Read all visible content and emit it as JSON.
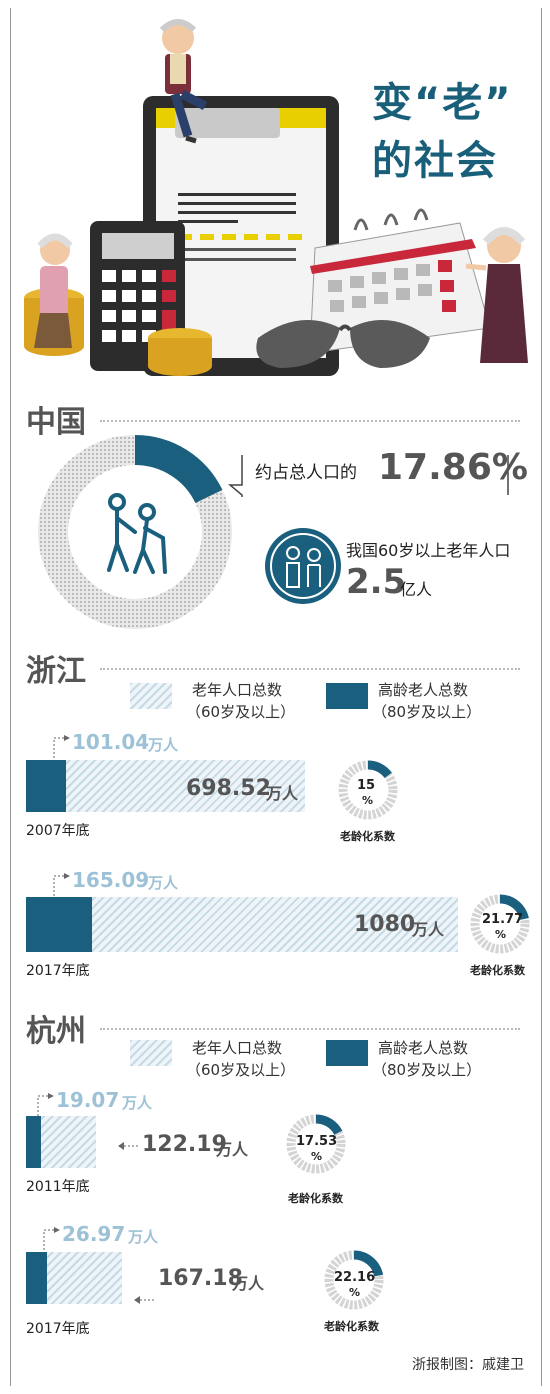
{
  "title_line1": "变“老”",
  "title_line2": "的社会",
  "china": {
    "heading": "中国",
    "share_prefix": "约占总人口的",
    "share_value": "17.86%",
    "share_fraction": 0.1786,
    "elderly_text": "我国60岁以上老年人口",
    "elderly_value": "2.5",
    "elderly_unit": "亿人"
  },
  "legend": {
    "total_label_1": "老年人口总数",
    "total_label_2": "（60岁及以上）",
    "old_label_1": "高龄老人总数",
    "old_label_2": "（80岁及以上）"
  },
  "zhejiang": {
    "heading": "浙江",
    "rows": [
      {
        "year": "2007年底",
        "old": "101.04",
        "old_unit": "万人",
        "total": "698.52",
        "total_unit": "万人",
        "ratio": "15",
        "ratio_unit": "%",
        "ratio_label": "老龄化系数"
      },
      {
        "year": "2017年底",
        "old": "165.09",
        "old_unit": "万人",
        "total": "1080",
        "total_unit": "万人",
        "ratio": "21.77",
        "ratio_unit": "%",
        "ratio_label": "老龄化系数"
      }
    ]
  },
  "hangzhou": {
    "heading": "杭州",
    "rows": [
      {
        "year": "2011年底",
        "old": "19.07",
        "old_unit": "万人",
        "total": "122.19",
        "total_unit": "万人",
        "ratio": "17.53",
        "ratio_unit": "%",
        "ratio_label": "老龄化系数"
      },
      {
        "year": "2017年底",
        "old": "26.97",
        "old_unit": "万人",
        "total": "167.18",
        "total_unit": "万人",
        "ratio": "22.16",
        "ratio_unit": "%",
        "ratio_label": "老龄化系数"
      }
    ]
  },
  "credit": "浙报制图：戚建卫",
  "chart_data": [
    {
      "type": "pie",
      "categories": [
        "60岁以上老年人口"
      ],
      "values": [
        17.86
      ]
    },
    {
      "type": "bar",
      "categories": [
        "2007年底",
        "2017年底"
      ],
      "series": [
        {
          "name": "老年人口总数（60岁及以上）",
          "values": [
            698.52,
            1080
          ]
        },
        {
          "name": "高龄老人总数（80岁及以上）",
          "values": [
            101.04,
            165.09
          ]
        }
      ]
    },
    {
      "type": "pie",
      "categories": [
        "2007年底",
        "2017年底"
      ],
      "values": [
        15,
        21.77
      ]
    },
    {
      "type": "bar",
      "categories": [
        "2011年底",
        "2017年底"
      ],
      "series": [
        {
          "name": "老年人口总数（60岁及以上）",
          "values": [
            122.19,
            167.18
          ]
        },
        {
          "name": "高龄老人总数（80岁及以上）",
          "values": [
            19.07,
            26.97
          ]
        }
      ]
    },
    {
      "type": "pie",
      "categories": [
        "2011年底",
        "2017年底"
      ],
      "values": [
        17.53,
        22.16
      ]
    }
  ],
  "colors": {
    "dark": "#1a607e",
    "light": "#c6dae5",
    "title": "#1a5f7a",
    "red": "#c8283a",
    "gold": "#e8b730"
  }
}
